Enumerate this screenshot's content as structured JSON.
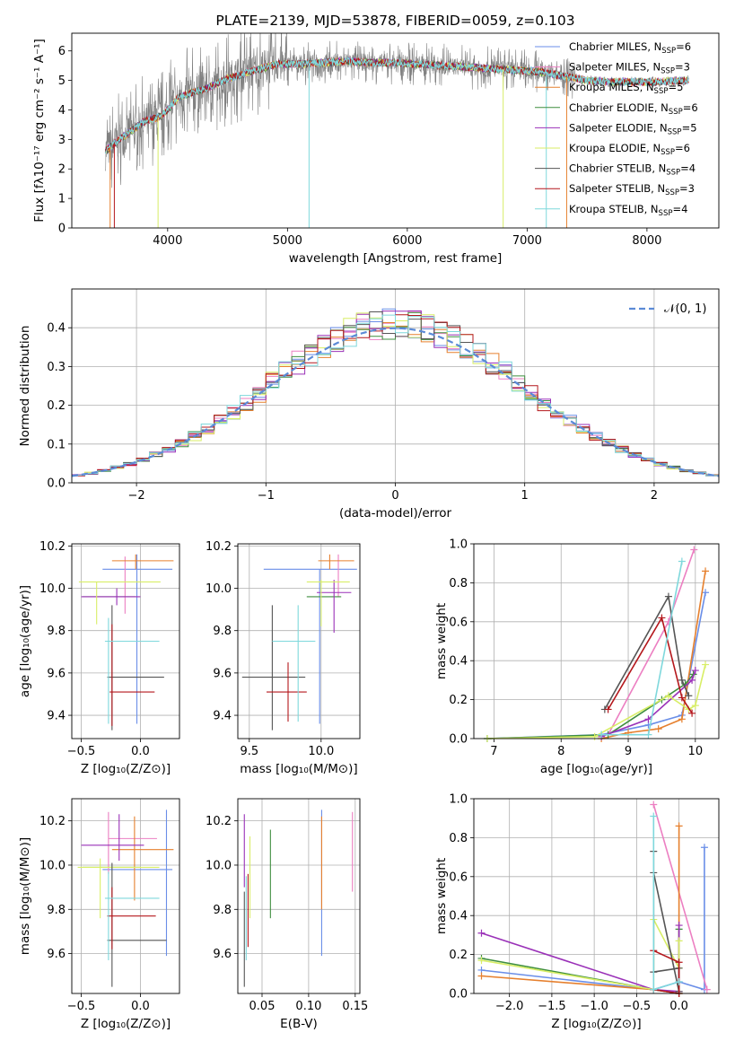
{
  "colors": {
    "chabrier_miles": "#6a8ee8",
    "salpeter_miles": "#ec7fc2",
    "kroupa_miles": "#e6802e",
    "chabrier_elodie": "#3f8e3f",
    "salpeter_elodie": "#9a31b8",
    "kroupa_elodie": "#d8ee66",
    "chabrier_stelib": "#555555",
    "salpeter_stelib": "#b4171c",
    "kroupa_stelib": "#7fd8dc",
    "spectrum_grey": "#808080",
    "grid": "#b0b0b0",
    "normal_curve": "#5b8ad6"
  },
  "chart_data": [
    {
      "id": "spectrum",
      "type": "line",
      "title": "PLATE=2139, MJD=53878, FIBERID=0059, z=0.103",
      "xlabel": "wavelength [Angstrom, rest frame]",
      "ylabel": "Flux [fλ10⁻¹⁷ erg cm⁻² s⁻¹ A⁻¹]",
      "xlim": [
        3200,
        8600
      ],
      "ylim": [
        0,
        6.6
      ],
      "xticks": [
        4000,
        5000,
        6000,
        7000,
        8000
      ],
      "yticks": [
        0,
        1,
        2,
        3,
        4,
        5,
        6
      ],
      "grid": false,
      "legend_position": "right",
      "continuum": [
        [
          3480,
          2.6
        ],
        [
          3600,
          3.0
        ],
        [
          3800,
          3.6
        ],
        [
          3950,
          3.8
        ],
        [
          4100,
          4.45
        ],
        [
          4300,
          4.7
        ],
        [
          4500,
          5.05
        ],
        [
          4700,
          5.3
        ],
        [
          4900,
          5.55
        ],
        [
          5100,
          5.55
        ],
        [
          5300,
          5.6
        ],
        [
          5500,
          5.65
        ],
        [
          5700,
          5.6
        ],
        [
          5900,
          5.6
        ],
        [
          6100,
          5.55
        ],
        [
          6300,
          5.5
        ],
        [
          6500,
          5.45
        ],
        [
          6700,
          5.4
        ],
        [
          6900,
          5.35
        ],
        [
          7100,
          5.3
        ],
        [
          7300,
          5.15
        ],
        [
          7500,
          5.0
        ],
        [
          7700,
          4.95
        ],
        [
          7900,
          4.95
        ],
        [
          8100,
          4.95
        ],
        [
          8350,
          5.0
        ]
      ],
      "series": [
        {
          "name": "Chabrier MILES, N_SSP=6",
          "nssp": "6",
          "color_key": "chabrier_miles"
        },
        {
          "name": "Salpeter MILES, N_SSP=3",
          "nssp": "3",
          "color_key": "salpeter_miles"
        },
        {
          "name": "Kroupa MILES, N_SSP=5",
          "nssp": "5",
          "color_key": "kroupa_miles"
        },
        {
          "name": "Chabrier ELODIE, N_SSP=6",
          "nssp": "6",
          "color_key": "chabrier_elodie"
        },
        {
          "name": "Salpeter ELODIE, N_SSP=5",
          "nssp": "5",
          "color_key": "salpeter_elodie"
        },
        {
          "name": "Kroupa ELODIE, N_SSP=6",
          "nssp": "6",
          "color_key": "kroupa_elodie"
        },
        {
          "name": "Chabrier STELIB, N_SSP=4",
          "nssp": "4",
          "color_key": "chabrier_stelib"
        },
        {
          "name": "Salpeter STELIB, N_SSP=3",
          "nssp": "3",
          "color_key": "salpeter_stelib"
        },
        {
          "name": "Kroupa STELIB, N_SSP=4",
          "nssp": "4",
          "color_key": "kroupa_stelib"
        }
      ]
    },
    {
      "id": "residuals",
      "type": "histogram",
      "xlabel": "(data-model)/error",
      "ylabel": "Normed distribution",
      "xlim": [
        -2.5,
        2.5
      ],
      "ylim": [
        0,
        0.5
      ],
      "xticks": [
        -2,
        -1,
        0,
        1,
        2
      ],
      "xtick_labels": [
        "−2",
        "−1",
        "0",
        "1",
        "2"
      ],
      "yticks": [
        0.0,
        0.1,
        0.2,
        0.3,
        0.4
      ],
      "grid": true,
      "legend": "𝒩(0, 1)",
      "legend_position": "top-right",
      "bin_width": 0.1
    },
    {
      "id": "age_vs_Z",
      "type": "errorbar",
      "xlabel": "Z [log₁₀(Z/Z⊙)]",
      "ylabel": "age  [log₁₀(age/yr)]",
      "xlim": [
        -0.58,
        0.33
      ],
      "ylim": [
        9.29,
        10.21
      ],
      "xticks": [
        -0.5,
        0.0
      ],
      "xtick_labels": [
        "−0.5",
        "0.0"
      ],
      "yticks": [
        9.4,
        9.6,
        9.8,
        10.0,
        10.2
      ],
      "grid": true,
      "points": [
        {
          "c": "chabrier_miles",
          "x": -0.03,
          "xe": [
            -0.32,
            0.27
          ],
          "y": 10.09,
          "ye": [
            9.36,
            10.16
          ]
        },
        {
          "c": "salpeter_miles",
          "x": -0.13,
          "xe": [
            -0.13,
            -0.13
          ],
          "y": 9.97,
          "ye": [
            9.88,
            10.15
          ]
        },
        {
          "c": "kroupa_miles",
          "x": -0.04,
          "xe": [
            -0.24,
            0.28
          ],
          "y": 10.13,
          "ye": [
            10.09,
            10.16
          ]
        },
        {
          "c": "chabrier_elodie",
          "x": -0.49,
          "xe": [
            -0.49,
            -0.04
          ],
          "y": 9.96,
          "ye": [
            9.96,
            9.96
          ]
        },
        {
          "c": "salpeter_elodie",
          "x": -0.2,
          "xe": [
            -0.5,
            0.0
          ],
          "y": 9.96,
          "ye": [
            9.92,
            10.0
          ]
        },
        {
          "c": "kroupa_elodie",
          "x": -0.37,
          "xe": [
            -0.52,
            0.17
          ],
          "y": 10.03,
          "ye": [
            9.83,
            10.03
          ]
        },
        {
          "c": "chabrier_stelib",
          "x": -0.24,
          "xe": [
            -0.28,
            0.2
          ],
          "y": 9.58,
          "ye": [
            9.33,
            9.92
          ]
        },
        {
          "c": "salpeter_stelib",
          "x": -0.24,
          "xe": [
            -0.26,
            0.12
          ],
          "y": 9.51,
          "ye": [
            9.35,
            9.83
          ]
        },
        {
          "c": "kroupa_stelib",
          "x": -0.27,
          "xe": [
            -0.3,
            0.16
          ],
          "y": 9.75,
          "ye": [
            9.36,
            9.86
          ]
        }
      ]
    },
    {
      "id": "age_vs_mass",
      "type": "errorbar",
      "xlabel": "mass [log₁₀(M/M⊙)]",
      "ylabel": "",
      "xlim": [
        9.42,
        10.27
      ],
      "ylim": [
        9.29,
        10.21
      ],
      "xticks": [
        9.5,
        10.0
      ],
      "xtick_labels": [
        "9.5",
        "10.0"
      ],
      "yticks": [
        9.4,
        9.6,
        9.8,
        10.0,
        10.2
      ],
      "grid": true,
      "points": [
        {
          "c": "chabrier_miles",
          "x": 9.99,
          "xe": [
            9.6,
            10.25
          ],
          "y": 10.09,
          "ye": [
            9.36,
            10.09
          ]
        },
        {
          "c": "salpeter_miles",
          "x": 10.12,
          "xe": [
            10.12,
            10.12
          ],
          "y": 9.96,
          "ye": [
            9.96,
            10.16
          ]
        },
        {
          "c": "kroupa_miles",
          "x": 10.06,
          "xe": [
            9.98,
            10.23
          ],
          "y": 10.13,
          "ye": [
            10.09,
            10.16
          ]
        },
        {
          "c": "chabrier_elodie",
          "x": 9.99,
          "xe": [
            9.9,
            10.14
          ],
          "y": 9.96,
          "ye": [
            9.96,
            9.96
          ]
        },
        {
          "c": "salpeter_elodie",
          "x": 10.09,
          "xe": [
            9.97,
            10.21
          ],
          "y": 9.98,
          "ye": [
            9.79,
            10.04
          ]
        },
        {
          "c": "kroupa_elodie",
          "x": 10.0,
          "xe": [
            9.9,
            10.2
          ],
          "y": 10.03,
          "ye": [
            9.82,
            10.04
          ]
        },
        {
          "c": "chabrier_stelib",
          "x": 9.66,
          "xe": [
            9.45,
            9.89
          ],
          "y": 9.58,
          "ye": [
            9.33,
            9.92
          ]
        },
        {
          "c": "salpeter_stelib",
          "x": 9.77,
          "xe": [
            9.62,
            9.9
          ],
          "y": 9.51,
          "ye": [
            9.37,
            9.65
          ]
        },
        {
          "c": "kroupa_stelib",
          "x": 9.84,
          "xe": [
            9.66,
            9.96
          ],
          "y": 9.75,
          "ye": [
            9.37,
            9.92
          ]
        }
      ]
    },
    {
      "id": "weight_vs_age",
      "type": "line",
      "xlabel": "age  [log₁₀(age/yr)]",
      "ylabel": "mass weight",
      "xlim": [
        6.7,
        10.35
      ],
      "ylim": [
        0,
        1.0
      ],
      "xticks": [
        7,
        8,
        9,
        10
      ],
      "yticks": [
        0.0,
        0.2,
        0.4,
        0.6,
        0.8,
        1.0
      ],
      "grid": true,
      "series": [
        {
          "c": "chabrier_miles",
          "x": [
            6.9,
            8.6,
            9.3,
            9.8,
            10.15
          ],
          "y": [
            0.0,
            0.02,
            0.07,
            0.12,
            0.75
          ]
        },
        {
          "c": "salpeter_miles",
          "x": [
            8.7,
            9.6,
            9.98
          ],
          "y": [
            0.02,
            0.6,
            0.97
          ]
        },
        {
          "c": "kroupa_miles",
          "x": [
            8.6,
            9.0,
            9.45,
            9.8,
            10.15
          ],
          "y": [
            0.0,
            0.03,
            0.05,
            0.1,
            0.86
          ]
        },
        {
          "c": "chabrier_elodie",
          "x": [
            6.9,
            8.7,
            9.5,
            9.85,
            9.97
          ],
          "y": [
            0.0,
            0.02,
            0.2,
            0.28,
            0.33
          ]
        },
        {
          "c": "salpeter_elodie",
          "x": [
            8.6,
            9.3,
            9.95,
            10.0
          ],
          "y": [
            0.01,
            0.1,
            0.3,
            0.35
          ]
        },
        {
          "c": "kroupa_elodie",
          "x": [
            6.9,
            8.5,
            9.6,
            9.9,
            10.0,
            10.15
          ],
          "y": [
            0.0,
            0.01,
            0.22,
            0.15,
            0.17,
            0.38
          ]
        },
        {
          "c": "chabrier_stelib",
          "x": [
            8.65,
            9.6,
            9.8,
            9.9
          ],
          "y": [
            0.15,
            0.73,
            0.3,
            0.22
          ]
        },
        {
          "c": "salpeter_stelib",
          "x": [
            8.7,
            9.5,
            9.8,
            9.95
          ],
          "y": [
            0.15,
            0.62,
            0.21,
            0.13
          ]
        },
        {
          "c": "kroupa_stelib",
          "x": [
            8.6,
            9.3,
            9.8
          ],
          "y": [
            0.02,
            0.02,
            0.91
          ]
        }
      ]
    },
    {
      "id": "mass_vs_Z",
      "type": "errorbar",
      "xlabel": "Z [log₁₀(Z/Z⊙)]",
      "ylabel": "mass [log₁₀(M/M⊙)]",
      "xlim": [
        -0.58,
        0.33
      ],
      "ylim": [
        9.42,
        10.3
      ],
      "xticks": [
        -0.5,
        0.0
      ],
      "xtick_labels": [
        "−0.5",
        "0.0"
      ],
      "yticks": [
        9.6,
        9.8,
        10.0,
        10.2
      ],
      "grid": true,
      "points": [
        {
          "c": "chabrier_miles",
          "x": 0.22,
          "xe": [
            -0.32,
            0.27
          ],
          "y": 9.98,
          "ye": [
            9.59,
            10.25
          ]
        },
        {
          "c": "salpeter_miles",
          "x": -0.27,
          "xe": [
            -0.27,
            0.14
          ],
          "y": 10.12,
          "ye": [
            9.96,
            10.24
          ]
        },
        {
          "c": "kroupa_miles",
          "x": -0.05,
          "xe": [
            -0.24,
            0.28
          ],
          "y": 10.07,
          "ye": [
            9.84,
            10.22
          ]
        },
        {
          "c": "chabrier_elodie",
          "x": -0.49,
          "xe": [
            -0.49,
            0.0
          ],
          "y": 9.99,
          "ye": [
            9.99,
            9.99
          ]
        },
        {
          "c": "salpeter_elodie",
          "x": -0.18,
          "xe": [
            -0.5,
            0.03
          ],
          "y": 10.09,
          "ye": [
            10.02,
            10.23
          ]
        },
        {
          "c": "kroupa_elodie",
          "x": -0.34,
          "xe": [
            -0.53,
            0.16
          ],
          "y": 9.99,
          "ye": [
            9.76,
            10.03
          ]
        },
        {
          "c": "chabrier_stelib",
          "x": -0.24,
          "xe": [
            -0.28,
            0.22
          ],
          "y": 9.66,
          "ye": [
            9.45,
            10.01
          ]
        },
        {
          "c": "salpeter_stelib",
          "x": -0.24,
          "xe": [
            -0.28,
            0.13
          ],
          "y": 9.77,
          "ye": [
            9.62,
            9.9
          ]
        },
        {
          "c": "kroupa_stelib",
          "x": -0.27,
          "xe": [
            -0.3,
            0.16
          ],
          "y": 9.85,
          "ye": [
            9.57,
            9.97
          ]
        }
      ]
    },
    {
      "id": "mass_vs_EBV",
      "type": "errorbar",
      "xlabel": "E(B-V)",
      "ylabel": "",
      "xlim": [
        0.024,
        0.155
      ],
      "ylim": [
        9.42,
        10.3
      ],
      "xticks": [
        0.05,
        0.1,
        0.15
      ],
      "xtick_labels": [
        "0.05",
        "0.10",
        "0.15"
      ],
      "yticks": [
        9.6,
        9.8,
        10.0,
        10.2
      ],
      "grid": true,
      "points": [
        {
          "c": "chabrier_miles",
          "x": 0.114,
          "y": 9.98,
          "ye": [
            9.59,
            10.25
          ]
        },
        {
          "c": "salpeter_miles",
          "x": 0.147,
          "y": 10.12,
          "ye": [
            9.88,
            10.24
          ]
        },
        {
          "c": "kroupa_miles",
          "x": 0.114,
          "y": 10.0,
          "ye": [
            9.8,
            10.22
          ]
        },
        {
          "c": "chabrier_elodie",
          "x": 0.059,
          "y": 9.99,
          "ye": [
            9.76,
            10.16
          ]
        },
        {
          "c": "salpeter_elodie",
          "x": 0.031,
          "y": 10.09,
          "ye": [
            9.9,
            10.23
          ]
        },
        {
          "c": "kroupa_elodie",
          "x": 0.037,
          "y": 9.99,
          "ye": [
            9.76,
            10.13
          ]
        },
        {
          "c": "chabrier_stelib",
          "x": 0.031,
          "y": 9.66,
          "ye": [
            9.45,
            9.88
          ]
        },
        {
          "c": "salpeter_stelib",
          "x": 0.035,
          "y": 9.77,
          "ye": [
            9.63,
            9.96
          ]
        },
        {
          "c": "kroupa_stelib",
          "x": 0.033,
          "y": 9.85,
          "ye": [
            9.57,
            9.95
          ]
        }
      ]
    },
    {
      "id": "weight_vs_Z",
      "type": "line",
      "xlabel": "Z [log₁₀(Z/Z⊙)]",
      "ylabel": "mass weight",
      "xlim": [
        -2.42,
        0.47
      ],
      "ylim": [
        0,
        1.0
      ],
      "xticks": [
        -2.0,
        -1.5,
        -1.0,
        -0.5,
        0.0
      ],
      "xtick_labels": [
        "−2.0",
        "−1.5",
        "−1.0",
        "−0.5",
        "0.0"
      ],
      "yticks": [
        0.0,
        0.2,
        0.4,
        0.6,
        0.8,
        1.0
      ],
      "grid": true,
      "series": [
        {
          "c": "chabrier_miles",
          "x": [
            -2.33,
            -0.3,
            0.0,
            0.3,
            0.3
          ],
          "y": [
            0.12,
            0.02,
            0.06,
            0.02,
            0.75
          ]
        },
        {
          "c": "salpeter_miles",
          "x": [
            -0.3,
            0.33
          ],
          "y": [
            0.97,
            0.02
          ]
        },
        {
          "c": "kroupa_miles",
          "x": [
            -2.33,
            -0.3,
            0.0,
            0.0
          ],
          "y": [
            0.09,
            0.02,
            0.0,
            0.86
          ]
        },
        {
          "c": "chabrier_elodie",
          "x": [
            -2.33,
            -0.3,
            0.0,
            0.0
          ],
          "y": [
            0.18,
            0.02,
            0.0,
            0.33
          ]
        },
        {
          "c": "salpeter_elodie",
          "x": [
            -2.33,
            -0.3,
            0.0,
            0.0
          ],
          "y": [
            0.31,
            0.02,
            0.01,
            0.35
          ]
        },
        {
          "c": "kroupa_elodie",
          "x": [
            -2.33,
            -0.3,
            -0.3,
            0.0,
            0.0
          ],
          "y": [
            0.17,
            0.02,
            0.38,
            0.13,
            0.27
          ]
        },
        {
          "c": "chabrier_stelib",
          "x": [
            -0.3,
            -0.3,
            0.0,
            0.0,
            -0.3
          ],
          "y": [
            0.73,
            0.11,
            0.13,
            0.01,
            0.62
          ]
        },
        {
          "c": "salpeter_stelib",
          "x": [
            -0.3,
            0.0,
            0.0,
            -0.3
          ],
          "y": [
            0.22,
            0.16,
            0.0,
            0.02
          ]
        },
        {
          "c": "kroupa_stelib",
          "x": [
            -0.3,
            -0.3,
            0.0
          ],
          "y": [
            0.91,
            0.02,
            0.06
          ]
        }
      ]
    }
  ]
}
